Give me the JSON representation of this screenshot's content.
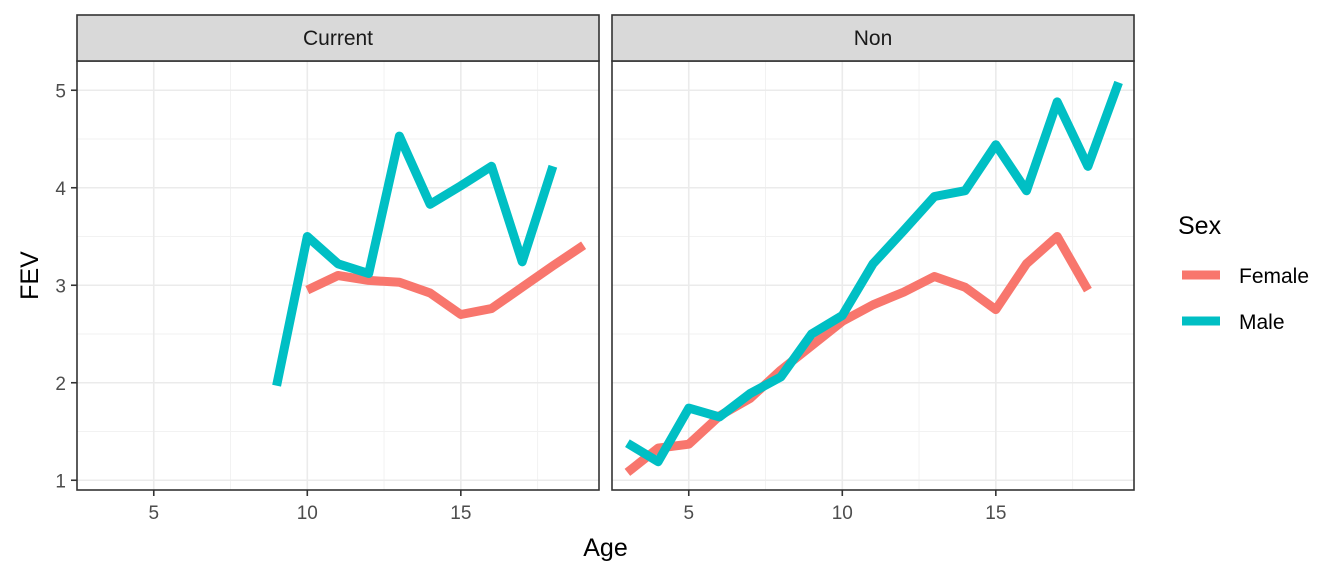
{
  "chart_data": {
    "type": "line",
    "xlabel": "Age",
    "ylabel": "FEV",
    "xlim": [
      2.5,
      19.5
    ],
    "ylim": [
      0.9,
      5.3
    ],
    "x_ticks": [
      5,
      10,
      15
    ],
    "y_ticks": [
      1,
      2,
      3,
      4,
      5
    ],
    "x_tick_labels": [
      "5",
      "10",
      "15"
    ],
    "y_tick_labels": [
      "1",
      "2",
      "3",
      "4",
      "5"
    ],
    "grid": true,
    "legend": {
      "title": "Sex",
      "position": "right",
      "entries": [
        {
          "name": "Female",
          "color": "#F8766D"
        },
        {
          "name": "Male",
          "color": "#00BFC4"
        }
      ]
    },
    "panels": [
      {
        "label": "Current",
        "series": [
          {
            "name": "Female",
            "color": "#F8766D",
            "x": [
              10,
              11,
              12,
              13,
              14,
              15,
              16,
              17,
              18,
              19
            ],
            "y": [
              2.95,
              3.1,
              3.05,
              3.03,
              2.92,
              2.7,
              2.76,
              2.98,
              3.2,
              3.41
            ]
          },
          {
            "name": "Male",
            "color": "#00BFC4",
            "x": [
              9,
              10,
              11,
              12,
              13,
              14,
              15,
              16,
              17,
              18
            ],
            "y": [
              1.97,
              3.5,
              3.22,
              3.12,
              4.53,
              3.83,
              4.02,
              4.22,
              3.24,
              4.22
            ]
          }
        ]
      },
      {
        "label": "Non",
        "series": [
          {
            "name": "Female",
            "color": "#F8766D",
            "x": [
              3,
              4,
              5,
              6,
              7,
              8,
              9,
              10,
              11,
              12,
              13,
              14,
              15,
              16,
              17,
              18
            ],
            "y": [
              1.08,
              1.33,
              1.37,
              1.66,
              1.84,
              2.13,
              2.38,
              2.63,
              2.8,
              2.93,
              3.09,
              2.98,
              2.75,
              3.22,
              3.5,
              2.95
            ]
          },
          {
            "name": "Male",
            "color": "#00BFC4",
            "x": [
              3,
              4,
              5,
              6,
              7,
              8,
              9,
              10,
              11,
              12,
              13,
              14,
              15,
              16,
              17,
              18,
              19
            ],
            "y": [
              1.38,
              1.19,
              1.74,
              1.65,
              1.89,
              2.06,
              2.5,
              2.69,
              3.22,
              3.56,
              3.91,
              3.97,
              4.44,
              3.97,
              4.88,
              4.22,
              5.08
            ]
          }
        ]
      }
    ]
  }
}
